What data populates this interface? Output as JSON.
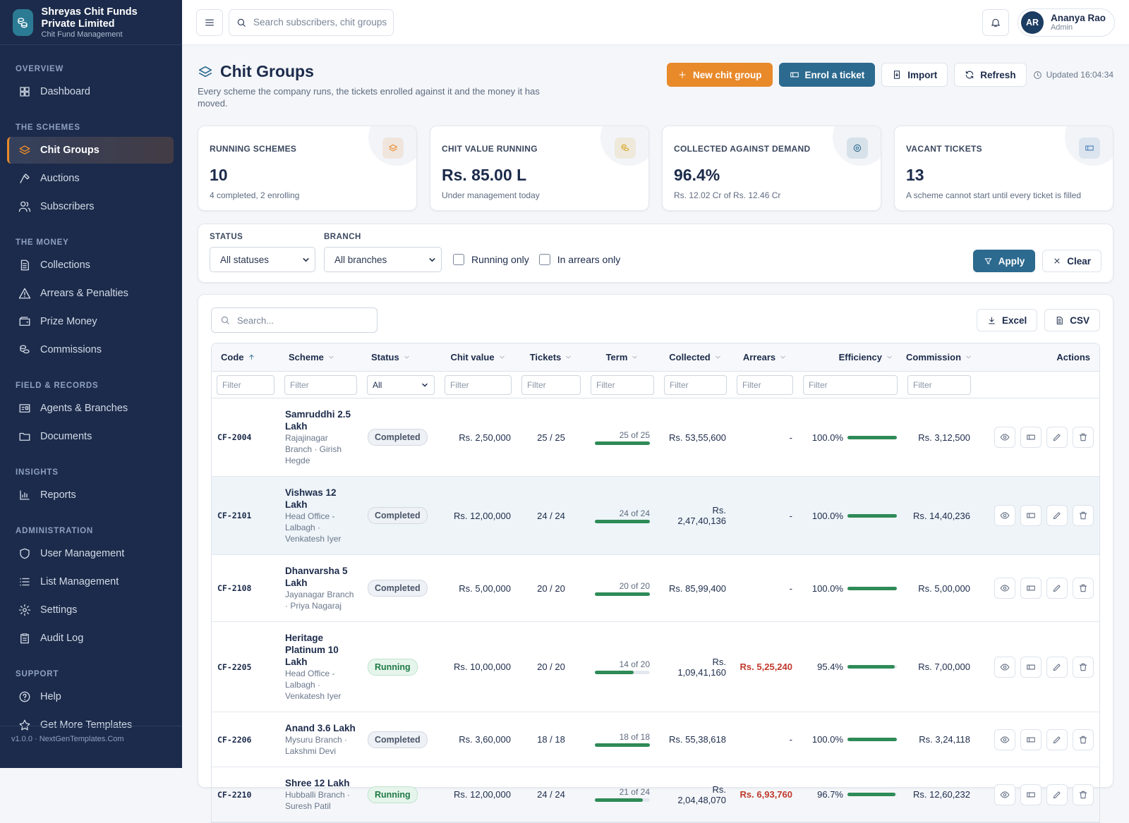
{
  "sidebar": {
    "brand": {
      "name": "Shreyas Chit Funds Private Limited",
      "tagline": "Chit Fund Management"
    },
    "sections": [
      {
        "title": "OVERVIEW",
        "items": [
          {
            "label": "Dashboard"
          }
        ]
      },
      {
        "title": "THE SCHEMES",
        "items": [
          {
            "label": "Chit Groups",
            "active": true
          },
          {
            "label": "Auctions"
          },
          {
            "label": "Subscribers"
          }
        ]
      },
      {
        "title": "THE MONEY",
        "items": [
          {
            "label": "Collections"
          },
          {
            "label": "Arrears & Penalties"
          },
          {
            "label": "Prize Money"
          },
          {
            "label": "Commissions"
          }
        ]
      },
      {
        "title": "FIELD & RECORDS",
        "items": [
          {
            "label": "Agents & Branches"
          },
          {
            "label": "Documents"
          }
        ]
      },
      {
        "title": "INSIGHTS",
        "items": [
          {
            "label": "Reports"
          }
        ]
      },
      {
        "title": "ADMINISTRATION",
        "items": [
          {
            "label": "User Management"
          },
          {
            "label": "List Management"
          },
          {
            "label": "Settings"
          },
          {
            "label": "Audit Log"
          }
        ]
      },
      {
        "title": "SUPPORT",
        "items": [
          {
            "label": "Help"
          },
          {
            "label": "Get More Templates"
          }
        ]
      }
    ],
    "footer": "v1.0.0 · NextGenTemplates.Com"
  },
  "topbar": {
    "search_placeholder": "Search subscribers, chit groups",
    "user": {
      "initials": "AR",
      "name": "Ananya Rao",
      "role": "Admin"
    }
  },
  "header": {
    "title": "Chit Groups",
    "subtitle": "Every scheme the company runs, the tickets enrolled against it and the money it has moved.",
    "buttons": [
      "New chit group",
      "Enrol a ticket",
      "Import",
      "Refresh"
    ],
    "updated": "Updated 16:04:34"
  },
  "stats": [
    {
      "label": "RUNNING SCHEMES",
      "value": "10",
      "note": "4 completed, 2 enrolling",
      "color": "#e8892a"
    },
    {
      "label": "CHIT VALUE RUNNING",
      "value": "Rs. 85.00 L",
      "note": "Under management today",
      "color": "#d9a21b"
    },
    {
      "label": "COLLECTED AGAINST DEMAND",
      "value": "96.4%",
      "note": "Rs. 12.02 Cr of Rs. 12.46 Cr",
      "color": "#2d6a8f"
    },
    {
      "label": "VACANT TICKETS",
      "value": "13",
      "note": "A scheme cannot start until every ticket is filled",
      "color": "#4a7fb5"
    }
  ],
  "filters": {
    "status": {
      "label": "STATUS",
      "value": "All statuses"
    },
    "branch": {
      "label": "BRANCH",
      "value": "All branches"
    },
    "checkboxes": [
      "Running only",
      "In arrears only"
    ],
    "apply": "Apply",
    "clear": "Clear"
  },
  "table": {
    "search_placeholder": "Search...",
    "exports": [
      "Excel",
      "CSV"
    ],
    "columns": [
      "Code",
      "Scheme",
      "Status",
      "Chit value",
      "Tickets",
      "Term",
      "Collected",
      "Arrears",
      "Efficiency",
      "Commission",
      "Actions"
    ],
    "filter_placeholder": "Filter",
    "status_filter": "All",
    "rows": [
      {
        "code": "CF-2004",
        "scheme": "Samruddhi 2.5 Lakh",
        "detail": "Rajajinagar Branch · Girish Hegde",
        "status": "Completed",
        "status_tone": "gray",
        "chit_value": "Rs. 2,50,000",
        "tickets": "25 / 25",
        "term": {
          "done": 25,
          "total": 25,
          "label": "25 of 25"
        },
        "collected": "Rs. 53,55,600",
        "arrears": "-",
        "arrears_tone": "plain",
        "efficiency": {
          "value": 100.0,
          "label": "100.0%"
        },
        "commission": "Rs. 3,12,500"
      },
      {
        "code": "CF-2101",
        "scheme": "Vishwas 12 Lakh",
        "detail": "Head Office - Lalbagh · Venkatesh Iyer",
        "status": "Completed",
        "status_tone": "gray",
        "chit_value": "Rs. 12,00,000",
        "tickets": "24 / 24",
        "term": {
          "done": 24,
          "total": 24,
          "label": "24 of 24"
        },
        "collected": "Rs. 2,47,40,136",
        "arrears": "-",
        "arrears_tone": "plain",
        "efficiency": {
          "value": 100.0,
          "label": "100.0%"
        },
        "commission": "Rs. 14,40,236"
      },
      {
        "code": "CF-2108",
        "scheme": "Dhanvarsha 5 Lakh",
        "detail": "Jayanagar Branch · Priya Nagaraj",
        "status": "Completed",
        "status_tone": "gray",
        "chit_value": "Rs. 5,00,000",
        "tickets": "20 / 20",
        "term": {
          "done": 20,
          "total": 20,
          "label": "20 of 20"
        },
        "collected": "Rs. 85,99,400",
        "arrears": "-",
        "arrears_tone": "plain",
        "efficiency": {
          "value": 100.0,
          "label": "100.0%"
        },
        "commission": "Rs. 5,00,000"
      },
      {
        "code": "CF-2205",
        "scheme": "Heritage Platinum 10 Lakh",
        "detail": "Head Office - Lalbagh · Venkatesh Iyer",
        "status": "Running",
        "status_tone": "green",
        "chit_value": "Rs. 10,00,000",
        "tickets": "20 / 20",
        "term": {
          "done": 14,
          "total": 20,
          "label": "14 of 20"
        },
        "collected": "Rs. 1,09,41,160",
        "arrears": "Rs. 5,25,240",
        "arrears_tone": "red",
        "efficiency": {
          "value": 95.4,
          "label": "95.4%"
        },
        "commission": "Rs. 7,00,000"
      },
      {
        "code": "CF-2206",
        "scheme": "Anand 3.6 Lakh",
        "detail": "Mysuru Branch · Lakshmi Devi",
        "status": "Completed",
        "status_tone": "gray",
        "chit_value": "Rs. 3,60,000",
        "tickets": "18 / 18",
        "term": {
          "done": 18,
          "total": 18,
          "label": "18 of 18"
        },
        "collected": "Rs. 55,38,618",
        "arrears": "-",
        "arrears_tone": "plain",
        "efficiency": {
          "value": 100.0,
          "label": "100.0%"
        },
        "commission": "Rs. 3,24,118"
      },
      {
        "code": "CF-2210",
        "scheme": "Shree 12 Lakh",
        "detail": "Hubballi Branch · Suresh Patil",
        "status": "Running",
        "status_tone": "green",
        "chit_value": "Rs. 12,00,000",
        "tickets": "24 / 24",
        "term": {
          "done": 21,
          "total": 24,
          "label": "21 of 24"
        },
        "collected": "Rs. 2,04,48,070",
        "arrears": "Rs. 6,93,760",
        "arrears_tone": "red",
        "efficiency": {
          "value": 96.7,
          "label": "96.7%"
        },
        "commission": "Rs. 12,60,232"
      }
    ]
  }
}
